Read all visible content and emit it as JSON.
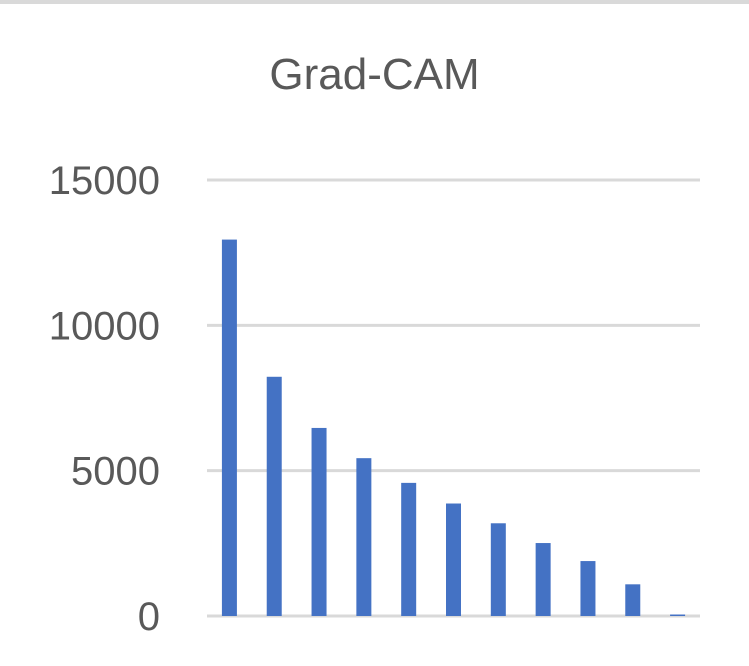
{
  "chart_data": {
    "type": "bar",
    "title": "Grad-CAM",
    "xlabel": "",
    "ylabel": "",
    "categories": [
      "",
      "",
      "",
      "",
      "",
      "",
      "",
      "",
      "",
      "",
      ""
    ],
    "values": [
      12950,
      8230,
      6470,
      5430,
      4580,
      3870,
      3190,
      2510,
      1890,
      1090,
      40
    ],
    "ylim": [
      0,
      15000
    ],
    "yticks": [
      "15000",
      "10000",
      "5000",
      "0"
    ],
    "grid": true,
    "legend": "none",
    "colors": {
      "bar": "#4472C4",
      "grid": "#d9d9d9",
      "text": "#595959"
    }
  }
}
